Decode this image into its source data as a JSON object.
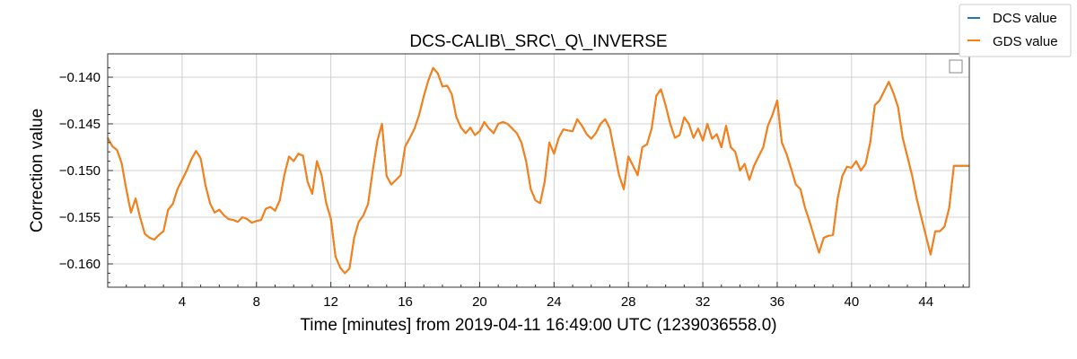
{
  "chart_data": {
    "type": "line",
    "title": "DCS-CALIB\\_SRC\\_Q\\_INVERSE",
    "xlabel": "Time [minutes] from 2019-04-11 16:49:00 UTC (1239036558.0)",
    "ylabel": "Correction value",
    "xlim": [
      0,
      46.33
    ],
    "ylim": [
      -0.1625,
      -0.1375
    ],
    "xticks": [
      4,
      8,
      12,
      16,
      20,
      24,
      28,
      32,
      36,
      40,
      44
    ],
    "xtick_labels": [
      "4",
      "8",
      "12",
      "16",
      "20",
      "24",
      "28",
      "32",
      "36",
      "40",
      "44"
    ],
    "yticks": [
      -0.16,
      -0.155,
      -0.15,
      -0.145,
      -0.14
    ],
    "ytick_labels": [
      "−0.160",
      "−0.155",
      "−0.150",
      "−0.145",
      "−0.140"
    ],
    "grid": true,
    "legend_position": "top-right",
    "x": [
      0,
      0.25,
      0.5,
      0.75,
      1.0,
      1.25,
      1.5,
      1.75,
      2.0,
      2.25,
      2.5,
      2.75,
      3.0,
      3.25,
      3.5,
      3.75,
      4.0,
      4.25,
      4.5,
      4.75,
      5.0,
      5.25,
      5.5,
      5.75,
      6.0,
      6.25,
      6.5,
      6.75,
      7.0,
      7.25,
      7.5,
      7.75,
      8.0,
      8.25,
      8.5,
      8.75,
      9.0,
      9.25,
      9.5,
      9.75,
      10.0,
      10.25,
      10.5,
      10.75,
      11.0,
      11.25,
      11.5,
      11.75,
      12.0,
      12.25,
      12.5,
      12.75,
      13.0,
      13.25,
      13.5,
      13.75,
      14.0,
      14.25,
      14.5,
      14.75,
      15.0,
      15.25,
      15.5,
      15.75,
      16.0,
      16.25,
      16.5,
      16.75,
      17.0,
      17.25,
      17.5,
      17.75,
      18.0,
      18.25,
      18.5,
      18.75,
      19.0,
      19.25,
      19.5,
      19.75,
      20.0,
      20.25,
      20.5,
      20.75,
      21.0,
      21.25,
      21.5,
      21.75,
      22.0,
      22.25,
      22.5,
      22.75,
      23.0,
      23.25,
      23.5,
      23.75,
      24.0,
      24.25,
      24.5,
      24.75,
      25.0,
      25.25,
      25.5,
      25.75,
      26.0,
      26.25,
      26.5,
      26.75,
      27.0,
      27.25,
      27.5,
      27.75,
      28.0,
      28.25,
      28.5,
      28.75,
      29.0,
      29.25,
      29.5,
      29.75,
      30.0,
      30.25,
      30.5,
      30.75,
      31.0,
      31.25,
      31.5,
      31.75,
      32.0,
      32.25,
      32.5,
      32.75,
      33.0,
      33.25,
      33.5,
      33.75,
      34.0,
      34.25,
      34.5,
      34.75,
      35.0,
      35.25,
      35.5,
      35.75,
      36.0,
      36.25,
      36.5,
      36.75,
      37.0,
      37.25,
      37.5,
      37.75,
      38.0,
      38.25,
      38.5,
      38.75,
      39.0,
      39.25,
      39.5,
      39.75,
      40.0,
      40.25,
      40.5,
      40.75,
      41.0,
      41.25,
      41.5,
      41.75,
      42.0,
      42.25,
      42.5,
      42.75,
      43.0,
      43.25,
      43.5,
      43.75,
      44.0,
      44.25,
      44.5,
      44.75,
      45.0,
      45.25,
      45.5,
      45.75,
      46.0,
      46.33
    ],
    "series": [
      {
        "name": "DCS value",
        "color": "#1f77b4",
        "values": [
          -0.1465,
          -0.1474,
          -0.1478,
          -0.1492,
          -0.152,
          -0.1545,
          -0.153,
          -0.1551,
          -0.1568,
          -0.1572,
          -0.1574,
          -0.1569,
          -0.1565,
          -0.1542,
          -0.1536,
          -0.152,
          -0.151,
          -0.15,
          -0.1488,
          -0.1479,
          -0.1487,
          -0.1515,
          -0.1535,
          -0.1545,
          -0.1542,
          -0.1548,
          -0.1552,
          -0.1553,
          -0.1555,
          -0.155,
          -0.1552,
          -0.1556,
          -0.1554,
          -0.1553,
          -0.1541,
          -0.1539,
          -0.1543,
          -0.1532,
          -0.1505,
          -0.1485,
          -0.149,
          -0.1482,
          -0.1484,
          -0.1512,
          -0.1525,
          -0.149,
          -0.1505,
          -0.1535,
          -0.1552,
          -0.1592,
          -0.1604,
          -0.161,
          -0.1605,
          -0.1572,
          -0.1555,
          -0.1548,
          -0.1536,
          -0.15,
          -0.1468,
          -0.145,
          -0.1506,
          -0.1515,
          -0.151,
          -0.1505,
          -0.1474,
          -0.1465,
          -0.1455,
          -0.144,
          -0.142,
          -0.1403,
          -0.139,
          -0.1396,
          -0.141,
          -0.1409,
          -0.1418,
          -0.1443,
          -0.1454,
          -0.146,
          -0.1454,
          -0.1462,
          -0.1458,
          -0.1448,
          -0.1455,
          -0.146,
          -0.145,
          -0.1448,
          -0.145,
          -0.1455,
          -0.146,
          -0.147,
          -0.149,
          -0.152,
          -0.1532,
          -0.1535,
          -0.1512,
          -0.147,
          -0.1482,
          -0.1465,
          -0.1456,
          -0.1457,
          -0.1458,
          -0.1445,
          -0.1452,
          -0.1461,
          -0.1466,
          -0.146,
          -0.145,
          -0.1445,
          -0.1455,
          -0.148,
          -0.1505,
          -0.152,
          -0.1485,
          -0.1495,
          -0.1505,
          -0.1475,
          -0.1472,
          -0.1455,
          -0.142,
          -0.1413,
          -0.143,
          -0.145,
          -0.1465,
          -0.1462,
          -0.1443,
          -0.145,
          -0.1465,
          -0.1455,
          -0.1468,
          -0.145,
          -0.1466,
          -0.1461,
          -0.1475,
          -0.1452,
          -0.1475,
          -0.148,
          -0.15,
          -0.1493,
          -0.151,
          -0.1495,
          -0.1485,
          -0.1475,
          -0.1452,
          -0.144,
          -0.1425,
          -0.147,
          -0.1482,
          -0.1498,
          -0.1515,
          -0.152,
          -0.154,
          -0.1555,
          -0.1572,
          -0.1588,
          -0.1572,
          -0.157,
          -0.1569,
          -0.153,
          -0.1506,
          -0.1496,
          -0.1497,
          -0.149,
          -0.15,
          -0.1493,
          -0.147,
          -0.143,
          -0.1425,
          -0.1415,
          -0.1405,
          -0.1417,
          -0.1432,
          -0.1465,
          -0.1485,
          -0.1505,
          -0.153,
          -0.155,
          -0.157,
          -0.159,
          -0.1565,
          -0.1565,
          -0.156,
          -0.154,
          -0.1495,
          -0.1495,
          -0.1495,
          -0.1495
        ]
      },
      {
        "name": "GDS value",
        "color": "#ff7f0e",
        "values": [
          -0.1465,
          -0.1474,
          -0.1478,
          -0.1492,
          -0.152,
          -0.1545,
          -0.153,
          -0.1551,
          -0.1568,
          -0.1572,
          -0.1574,
          -0.1569,
          -0.1565,
          -0.1542,
          -0.1536,
          -0.152,
          -0.151,
          -0.15,
          -0.1488,
          -0.1479,
          -0.1487,
          -0.1515,
          -0.1535,
          -0.1545,
          -0.1542,
          -0.1548,
          -0.1552,
          -0.1553,
          -0.1555,
          -0.155,
          -0.1552,
          -0.1556,
          -0.1554,
          -0.1553,
          -0.1541,
          -0.1539,
          -0.1543,
          -0.1532,
          -0.1505,
          -0.1485,
          -0.149,
          -0.1482,
          -0.1484,
          -0.1512,
          -0.1525,
          -0.149,
          -0.1505,
          -0.1535,
          -0.1552,
          -0.1592,
          -0.1604,
          -0.161,
          -0.1605,
          -0.1572,
          -0.1555,
          -0.1548,
          -0.1536,
          -0.15,
          -0.1468,
          -0.145,
          -0.1506,
          -0.1515,
          -0.151,
          -0.1505,
          -0.1474,
          -0.1465,
          -0.1455,
          -0.144,
          -0.142,
          -0.1403,
          -0.139,
          -0.1396,
          -0.141,
          -0.1409,
          -0.1418,
          -0.1443,
          -0.1454,
          -0.146,
          -0.1454,
          -0.1462,
          -0.1458,
          -0.1448,
          -0.1455,
          -0.146,
          -0.145,
          -0.1448,
          -0.145,
          -0.1455,
          -0.146,
          -0.147,
          -0.149,
          -0.152,
          -0.1532,
          -0.1535,
          -0.1512,
          -0.147,
          -0.1482,
          -0.1465,
          -0.1456,
          -0.1457,
          -0.1458,
          -0.1445,
          -0.1452,
          -0.1461,
          -0.1466,
          -0.146,
          -0.145,
          -0.1445,
          -0.1455,
          -0.148,
          -0.1505,
          -0.152,
          -0.1485,
          -0.1495,
          -0.1505,
          -0.1475,
          -0.1472,
          -0.1455,
          -0.142,
          -0.1413,
          -0.143,
          -0.145,
          -0.1465,
          -0.1462,
          -0.1443,
          -0.145,
          -0.1465,
          -0.1455,
          -0.1468,
          -0.145,
          -0.1466,
          -0.1461,
          -0.1475,
          -0.1452,
          -0.1475,
          -0.148,
          -0.15,
          -0.1493,
          -0.151,
          -0.1495,
          -0.1485,
          -0.1475,
          -0.1452,
          -0.144,
          -0.1425,
          -0.147,
          -0.1482,
          -0.1498,
          -0.1515,
          -0.152,
          -0.154,
          -0.1555,
          -0.1572,
          -0.1588,
          -0.1572,
          -0.157,
          -0.1569,
          -0.153,
          -0.1506,
          -0.1496,
          -0.1497,
          -0.149,
          -0.15,
          -0.1493,
          -0.147,
          -0.143,
          -0.1425,
          -0.1415,
          -0.1405,
          -0.1417,
          -0.1432,
          -0.1465,
          -0.1485,
          -0.1505,
          -0.153,
          -0.155,
          -0.157,
          -0.159,
          -0.1565,
          -0.1565,
          -0.156,
          -0.154,
          -0.1495,
          -0.1495,
          -0.1495,
          -0.1495
        ]
      }
    ]
  }
}
